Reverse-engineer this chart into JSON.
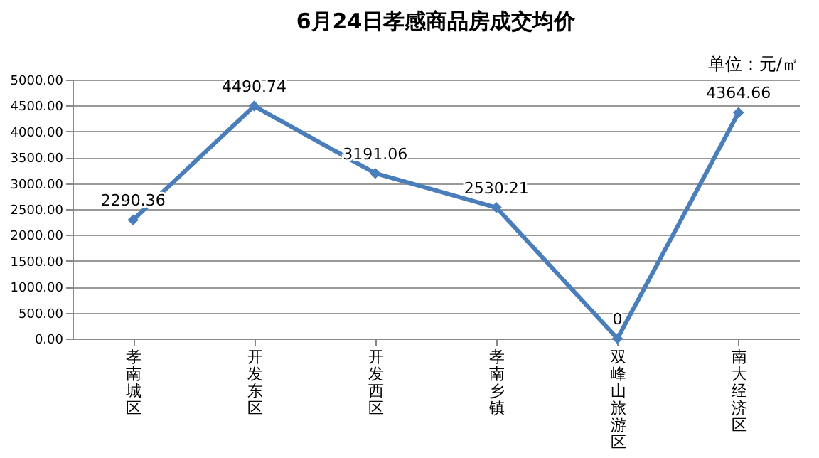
{
  "chart_data": {
    "type": "line",
    "title": "6月24日孝感商品房成交均价",
    "annotations": [
      "单位：元/㎡"
    ],
    "categories": [
      "孝南城区",
      "开发东区",
      "开发西区",
      "孝南乡镇",
      "双峰山旅游区",
      "南大经济区"
    ],
    "series": [
      {
        "color": "#4a7ebb",
        "values": [
          2290.36,
          4490.74,
          3191.06,
          2530.21,
          0,
          4364.66
        ]
      }
    ],
    "value_labels": [
      "2290.36",
      "4490.74",
      "3191.06",
      "2530.21",
      "0",
      "4364.66"
    ],
    "ylim": [
      0,
      5000
    ],
    "yticks": [
      {
        "value": 0,
        "label": "0.00"
      },
      {
        "value": 500,
        "label": "500.00"
      },
      {
        "value": 1000,
        "label": "1000.00"
      },
      {
        "value": 1500,
        "label": "1500.00"
      },
      {
        "value": 2000,
        "label": "2000.00"
      },
      {
        "value": 2500,
        "label": "2500.00"
      },
      {
        "value": 3000,
        "label": "3000.00"
      },
      {
        "value": 3500,
        "label": "3500.00"
      },
      {
        "value": 4000,
        "label": "4000.00"
      },
      {
        "value": 4500,
        "label": "4500.00"
      },
      {
        "value": 5000,
        "label": "5000.00"
      }
    ],
    "grid": "y",
    "marker": "diamond",
    "line_style": "solid",
    "legend": false
  }
}
